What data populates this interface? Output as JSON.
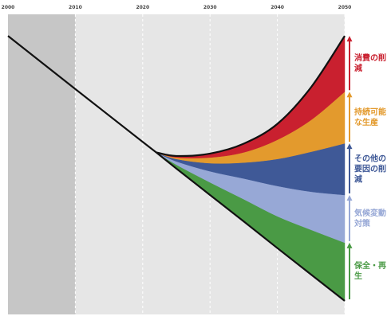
{
  "chart_data": {
    "type": "stacked_area",
    "x": [
      2000,
      2010,
      2020,
      2022,
      2025,
      2030,
      2035,
      2040,
      2045,
      2050
    ],
    "xlim": [
      2000,
      2050
    ],
    "xticks": [
      2000,
      2010,
      2020,
      2030,
      2040,
      2050
    ],
    "ylim": [
      0,
      100
    ],
    "baseline_values": [
      92.8,
      75.1,
      57.5,
      54.0,
      48.6,
      39.8,
      31.0,
      22.1,
      13.3,
      4.5
    ],
    "series": [
      {
        "name": "保全・再生",
        "color": "#4a9a45",
        "values": [
          null,
          null,
          null,
          0,
          1.3,
          4.2,
          7.4,
          10.6,
          14.9,
          19.4
        ]
      },
      {
        "name": "気候変動対策",
        "color": "#97a8d6",
        "values": [
          null,
          null,
          null,
          0,
          1.1,
          3.7,
          6.9,
          10.1,
          12.7,
          15.9
        ]
      },
      {
        "name": "その他の要因の削減",
        "color": "#3f5997",
        "values": [
          null,
          null,
          null,
          0,
          0.8,
          2.7,
          5.3,
          9.0,
          13.3,
          17.2
        ]
      },
      {
        "name": "持続可能な生産",
        "color": "#e39a2d",
        "values": [
          null,
          null,
          null,
          0,
          0.5,
          1.9,
          3.4,
          6.4,
          10.6,
          17.2
        ]
      },
      {
        "name": "消費の削減",
        "color": "#c9202f",
        "values": [
          null,
          null,
          null,
          0,
          0.5,
          1.3,
          2.9,
          5.3,
          10.9,
          18.6
        ]
      }
    ]
  }
}
